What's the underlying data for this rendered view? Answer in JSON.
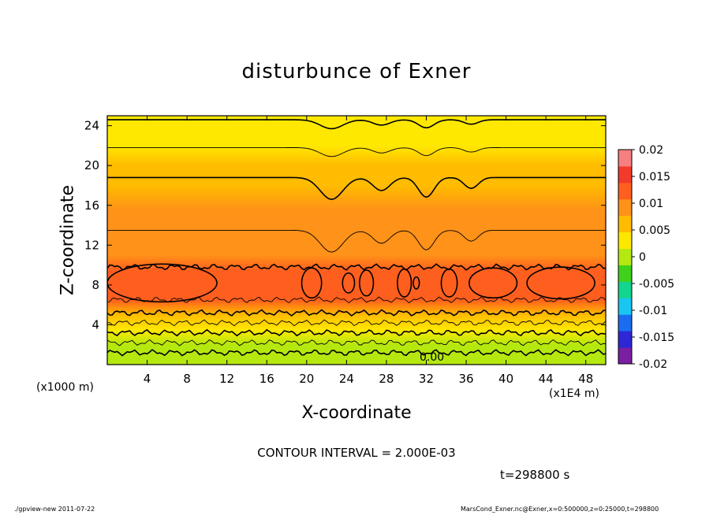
{
  "title": "disturbunce of Exner",
  "contour_note": "CONTOUR INTERVAL = 2.000E-03",
  "time_note": "t=298800 s",
  "footer_left": "./gpview-new   2011-07-22",
  "footer_right": "MarsCond_Exner.nc@Exner,x=0:500000,z=0:25000,t=298800",
  "chart_data": {
    "type": "heatmap",
    "title": "disturbunce of Exner",
    "xlabel": "X-coordinate",
    "ylabel": "Z-coordinate",
    "x_unit_label": "(x1E4 m)",
    "y_unit_label": "(x1000 m)",
    "xlim": [
      0,
      50
    ],
    "ylim": [
      0,
      25
    ],
    "x_ticks": [
      4,
      8,
      12,
      16,
      20,
      24,
      28,
      32,
      36,
      40,
      44,
      48
    ],
    "y_ticks": [
      4,
      8,
      12,
      16,
      20,
      24
    ],
    "colorbar": {
      "ticks": [
        0.02,
        0.015,
        0.01,
        0.005,
        0,
        -0.005,
        -0.01,
        -0.015,
        -0.02
      ],
      "tick_labels": [
        "0.02",
        "0.015",
        "0.01",
        "0.005",
        "0",
        "-0.005",
        "-0.01",
        "-0.015",
        "-0.02"
      ],
      "range": [
        -0.02,
        0.02
      ],
      "colors": [
        "#7a1fa2",
        "#2d27d6",
        "#1a6df0",
        "#19c6f2",
        "#12d58f",
        "#3fd11c",
        "#b5e80f",
        "#ffe800",
        "#ffbc00",
        "#ff9218",
        "#ff5f1e",
        "#f43a2a",
        "#f77f7f"
      ]
    },
    "contour_interval": 0.002,
    "contour_label": "0.00",
    "layers": [
      {
        "z": 0.5,
        "value": 0.0005
      },
      {
        "z": 2.0,
        "value": 0.0015
      },
      {
        "z": 3.5,
        "value": 0.0035
      },
      {
        "z": 5.0,
        "value": 0.007
      },
      {
        "z": 6.5,
        "value": 0.012
      },
      {
        "z": 8.0,
        "value": 0.0135
      },
      {
        "z": 9.5,
        "value": 0.012
      },
      {
        "z": 11.0,
        "value": 0.0105
      },
      {
        "z": 13.0,
        "value": 0.0095
      },
      {
        "z": 15.5,
        "value": 0.0085
      },
      {
        "z": 18.0,
        "value": 0.0075
      },
      {
        "z": 20.0,
        "value": 0.006
      },
      {
        "z": 22.0,
        "value": 0.0045
      },
      {
        "z": 24.0,
        "value": 0.003
      },
      {
        "z": 25.0,
        "value": 0.0025
      }
    ]
  }
}
